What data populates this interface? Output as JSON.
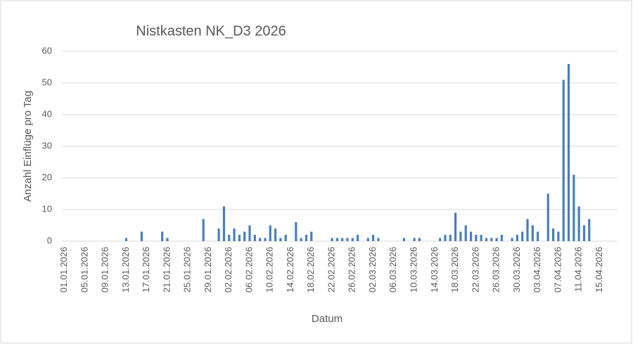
{
  "chart_data": {
    "type": "bar",
    "title": "Nistkasten NK_D3 2026",
    "x_label": "Datum",
    "y_label": "Anzahl Einflüge pro Tag",
    "categories": [
      "01.01.2026",
      null,
      null,
      null,
      "05.01.2026",
      null,
      null,
      null,
      "09.01.2026",
      null,
      null,
      null,
      "13.01.2026",
      null,
      null,
      null,
      "17.01.2026",
      null,
      null,
      null,
      "21.01.2026",
      null,
      null,
      null,
      "25.01.2026",
      null,
      null,
      null,
      "29.01.2026",
      null,
      null,
      null,
      "02.02.2026",
      null,
      null,
      null,
      "06.02.2026",
      null,
      null,
      null,
      "10.02.2026",
      null,
      null,
      null,
      "14.02.2026",
      null,
      null,
      null,
      "18.02.2026",
      null,
      null,
      null,
      "22.02.2026",
      null,
      null,
      null,
      "26.02.2026",
      null,
      null,
      null,
      "02.03.2026",
      null,
      null,
      null,
      "06.03.2026",
      null,
      null,
      null,
      "10.03.2026",
      null,
      null,
      null,
      "14.03.2026",
      null,
      null,
      null,
      "18.03.2026",
      null,
      null,
      null,
      "22.03.2026",
      null,
      null,
      null,
      "26.03.2026",
      null,
      null,
      null,
      "30.03.2026",
      null,
      null,
      null,
      "03.04.2026",
      null,
      null,
      null,
      "07.04.2026",
      null,
      null,
      null,
      "11.04.2026",
      null,
      null,
      null,
      "15.04.2026",
      null,
      null,
      null
    ],
    "values": [
      0,
      0,
      0,
      0,
      0,
      0,
      0,
      0,
      0,
      0,
      0,
      0,
      1,
      0,
      0,
      3,
      0,
      0,
      0,
      3,
      1,
      0,
      0,
      0,
      0,
      0,
      0,
      7,
      0,
      0,
      4,
      11,
      2,
      4,
      2,
      3,
      5,
      2,
      1,
      1,
      5,
      4,
      1,
      2,
      0,
      6,
      1,
      2,
      3,
      0,
      0,
      0,
      1,
      1,
      1,
      1,
      1,
      2,
      0,
      1,
      2,
      1,
      0,
      0,
      0,
      0,
      1,
      0,
      1,
      1,
      0,
      0,
      0,
      1,
      2,
      2,
      9,
      3,
      5,
      3,
      2,
      2,
      1,
      1,
      1,
      2,
      0,
      1,
      2,
      3,
      7,
      5,
      3,
      0,
      15,
      4,
      3,
      51,
      56,
      21,
      11,
      5,
      7,
      0,
      0,
      0,
      0,
      0
    ],
    "color": "#4a7ebb",
    "ylim": [
      0,
      60
    ],
    "yticks": [
      0,
      10,
      20,
      30,
      40,
      50,
      60
    ],
    "grid": true
  }
}
